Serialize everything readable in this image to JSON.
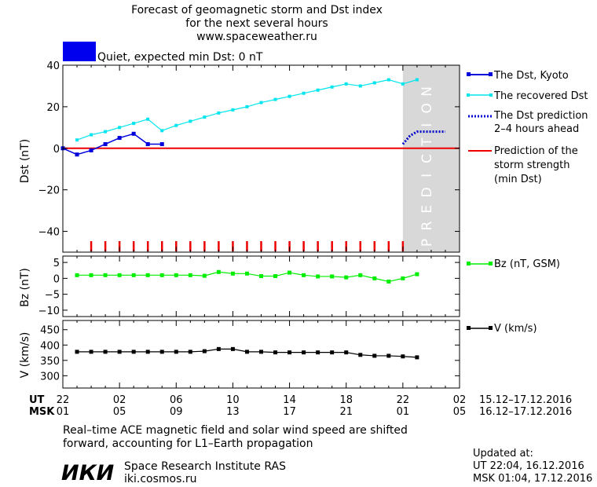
{
  "header": {
    "title_lines": [
      "Forecast of geomagnetic storm and Dst index",
      "for the next several hours",
      "www.spaceweather.ru"
    ],
    "status_color": "#0000ee",
    "status_text": "Quiet, expected min Dst: 0 nT"
  },
  "legend": {
    "dst_kyoto": "The Dst, Kyoto",
    "recovered": "The recovered Dst",
    "prediction_lines": [
      "The Dst prediction",
      "2–4 hours ahead"
    ],
    "strength_lines": [
      "Prediction of the",
      "storm strength",
      "(min Dst)"
    ],
    "bz": "Bz (nT, GSM)",
    "v": "V (km/s)"
  },
  "prediction_label": "PREDICTION",
  "time_axis": {
    "ut_label": "UT",
    "msk_label": "MSK",
    "ut_ticks": [
      "22",
      "02",
      "06",
      "10",
      "14",
      "18",
      "22",
      "02"
    ],
    "msk_ticks": [
      "01",
      "05",
      "09",
      "13",
      "17",
      "21",
      "01",
      "05"
    ],
    "ut_range": "15.12–17.12.2016",
    "msk_range": "16.12–17.12.2016"
  },
  "footer": {
    "note_lines": [
      "Real–time ACE magnetic field and solar wind speed are shifted",
      "forward, accounting for L1–Earth propagation"
    ],
    "logo": "ИКИ",
    "institute": "Space Research Institute RAS",
    "site": "iki.cosmos.ru",
    "updated_label": "Updated at:",
    "updated_ut": "UT   22:04, 16.12.2016",
    "updated_msk": "MSK 01:04, 17.12.2016"
  },
  "colors": {
    "dst_kyoto": "#0000dd",
    "recovered": "#00e5ee",
    "prediction": "#0000cc",
    "strength": "#ee0000",
    "bz": "#00ee00",
    "v": "#000000",
    "prediction_zone": "#d8d8d8"
  },
  "chart_data": [
    {
      "type": "line",
      "panel": "dst",
      "xlabel": "",
      "ylabel": "Dst (nT)",
      "xlim": [
        0,
        28
      ],
      "ylim": [
        -50,
        40
      ],
      "yticks": [
        40,
        20,
        0,
        -20,
        -40
      ],
      "prediction_zone": [
        24,
        28
      ],
      "series": [
        {
          "name": "The Dst, Kyoto",
          "x": [
            0,
            1,
            2,
            3,
            4,
            5,
            6,
            7
          ],
          "y": [
            0,
            -3,
            -1,
            2,
            5,
            7,
            2,
            2
          ]
        },
        {
          "name": "The recovered Dst",
          "x": [
            1,
            2,
            3,
            4,
            5,
            6,
            7,
            8,
            9,
            10,
            11,
            12,
            13,
            14,
            15,
            16,
            17,
            18,
            19,
            20,
            21,
            22,
            23,
            24,
            25
          ],
          "y": [
            4,
            6.5,
            8,
            10,
            12,
            14,
            8.5,
            11,
            13,
            15,
            17,
            18.5,
            20,
            22,
            23.5,
            25,
            26.5,
            28,
            29.5,
            31,
            30,
            31.5,
            33,
            31,
            33
          ]
        },
        {
          "name": "The Dst prediction",
          "x": [
            24,
            24.5,
            25,
            26,
            27
          ],
          "y": [
            2,
            6,
            8,
            8,
            8
          ]
        },
        {
          "name": "Prediction of the storm strength (min Dst)",
          "x": [
            0,
            28
          ],
          "y": [
            0,
            0
          ]
        }
      ],
      "red_markers_x": [
        2,
        3,
        4,
        5,
        6,
        7,
        8,
        9,
        10,
        11,
        12,
        13,
        14,
        15,
        16,
        17,
        18,
        19,
        20,
        21,
        22,
        23,
        24
      ]
    },
    {
      "type": "line",
      "panel": "bz",
      "ylabel": "Bz (nT)",
      "xlim": [
        0,
        28
      ],
      "ylim": [
        -12,
        7
      ],
      "yticks": [
        5,
        0,
        -5,
        -10
      ],
      "series": [
        {
          "name": "Bz (nT, GSM)",
          "x": [
            1,
            2,
            3,
            4,
            5,
            6,
            7,
            8,
            9,
            10,
            11,
            12,
            13,
            14,
            15,
            16,
            17,
            18,
            19,
            20,
            21,
            22,
            23,
            24,
            25
          ],
          "y": [
            1,
            1,
            1,
            1,
            1,
            1,
            1,
            1,
            1,
            0.8,
            2,
            1.5,
            1.5,
            0.7,
            0.7,
            1.8,
            1,
            0.6,
            0.6,
            0.3,
            1,
            0,
            -1,
            0,
            1.3
          ]
        }
      ]
    },
    {
      "type": "line",
      "panel": "v",
      "ylabel": "V (km/s)",
      "xlim": [
        0,
        28
      ],
      "ylim": [
        260,
        480
      ],
      "yticks": [
        450,
        400,
        350,
        300
      ],
      "series": [
        {
          "name": "V (km/s)",
          "x": [
            1,
            2,
            3,
            4,
            5,
            6,
            7,
            8,
            9,
            10,
            11,
            12,
            13,
            14,
            15,
            16,
            17,
            18,
            19,
            20,
            21,
            22,
            23,
            24,
            25
          ],
          "y": [
            378,
            378,
            378,
            378,
            378,
            378,
            378,
            378,
            378,
            380,
            387,
            387,
            378,
            378,
            376,
            376,
            376,
            376,
            376,
            376,
            368,
            365,
            365,
            363,
            360
          ]
        }
      ]
    }
  ]
}
